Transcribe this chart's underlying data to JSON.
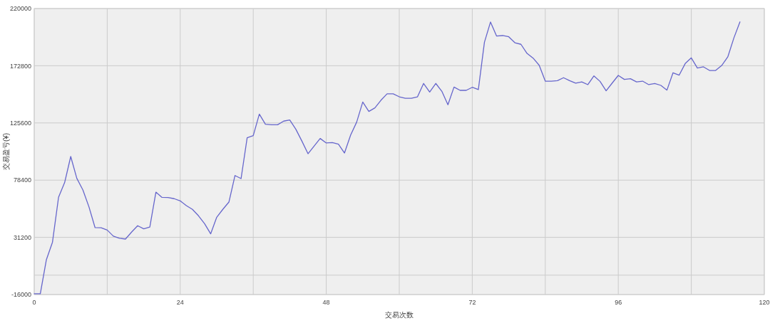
{
  "chart_data": {
    "type": "line",
    "xlabel": "交易次数",
    "ylabel": "交易盈亏(¥)",
    "xlim": [
      0,
      120
    ],
    "xticks": [
      0,
      {
        "value": 12,
        "label": null
      },
      24,
      {
        "value": 36,
        "label": null
      },
      48,
      {
        "value": 60,
        "label": null
      },
      72,
      {
        "value": 84,
        "label": null
      },
      96,
      {
        "value": 108,
        "label": null
      },
      120
    ],
    "ylim": [
      -16000,
      220000
    ],
    "yticks": [
      -16000,
      {
        "value": 0,
        "label": null
      },
      31200,
      78400,
      125600,
      172800,
      220000
    ],
    "grid": true,
    "x": [
      0,
      1,
      2,
      3,
      4,
      5,
      6,
      7,
      8,
      9,
      10,
      11,
      12,
      13,
      14,
      15,
      16,
      17,
      18,
      19,
      20,
      21,
      22,
      23,
      24,
      25,
      26,
      27,
      28,
      29,
      30,
      31,
      32,
      33,
      34,
      35,
      36,
      37,
      38,
      39,
      40,
      41,
      42,
      43,
      44,
      45,
      46,
      47,
      48,
      49,
      50,
      51,
      52,
      53,
      54,
      55,
      56,
      57,
      58,
      59,
      60,
      61,
      62,
      63,
      64,
      65,
      66,
      67,
      68,
      69,
      70,
      71,
      72,
      73,
      74,
      75,
      76,
      77,
      78,
      79,
      80,
      81,
      82,
      83,
      84,
      85,
      86,
      87,
      88,
      89,
      90,
      91,
      92,
      93,
      94,
      95,
      96,
      97,
      98,
      99,
      100,
      101,
      102,
      103,
      104,
      105,
      106,
      107,
      108,
      109,
      110,
      111,
      112,
      113,
      114,
      115,
      116
    ],
    "series": [
      {
        "color": "#6666cc",
        "values": [
          -15300,
          -15300,
          12800,
          27200,
          64300,
          76400,
          97900,
          79900,
          70300,
          56300,
          39200,
          39100,
          37200,
          32200,
          30400,
          29800,
          35500,
          40800,
          38200,
          39700,
          68500,
          64200,
          64100,
          63100,
          61300,
          57400,
          54300,
          49000,
          42500,
          34100,
          47800,
          54300,
          60300,
          82200,
          79700,
          113400,
          115100,
          132900,
          124500,
          124100,
          124100,
          127100,
          128000,
          120400,
          110600,
          100200,
          106500,
          112800,
          109100,
          109400,
          108100,
          100800,
          115500,
          126300,
          142900,
          135100,
          138000,
          144400,
          149600,
          149600,
          147200,
          145900,
          145900,
          147200,
          158200,
          151100,
          158200,
          151700,
          140600,
          155200,
          152500,
          152500,
          155000,
          153100,
          192200,
          208900,
          197300,
          197700,
          196700,
          191800,
          190500,
          183000,
          179100,
          173200,
          160100,
          160100,
          160500,
          162900,
          160500,
          158400,
          159500,
          157200,
          164400,
          159900,
          152100,
          158500,
          164800,
          161500,
          162100,
          159500,
          160100,
          157200,
          158200,
          156600,
          152700,
          167000,
          165000,
          174600,
          179300,
          170900,
          171900,
          168900,
          168900,
          173000,
          180100,
          195700,
          209000
        ]
      }
    ]
  }
}
